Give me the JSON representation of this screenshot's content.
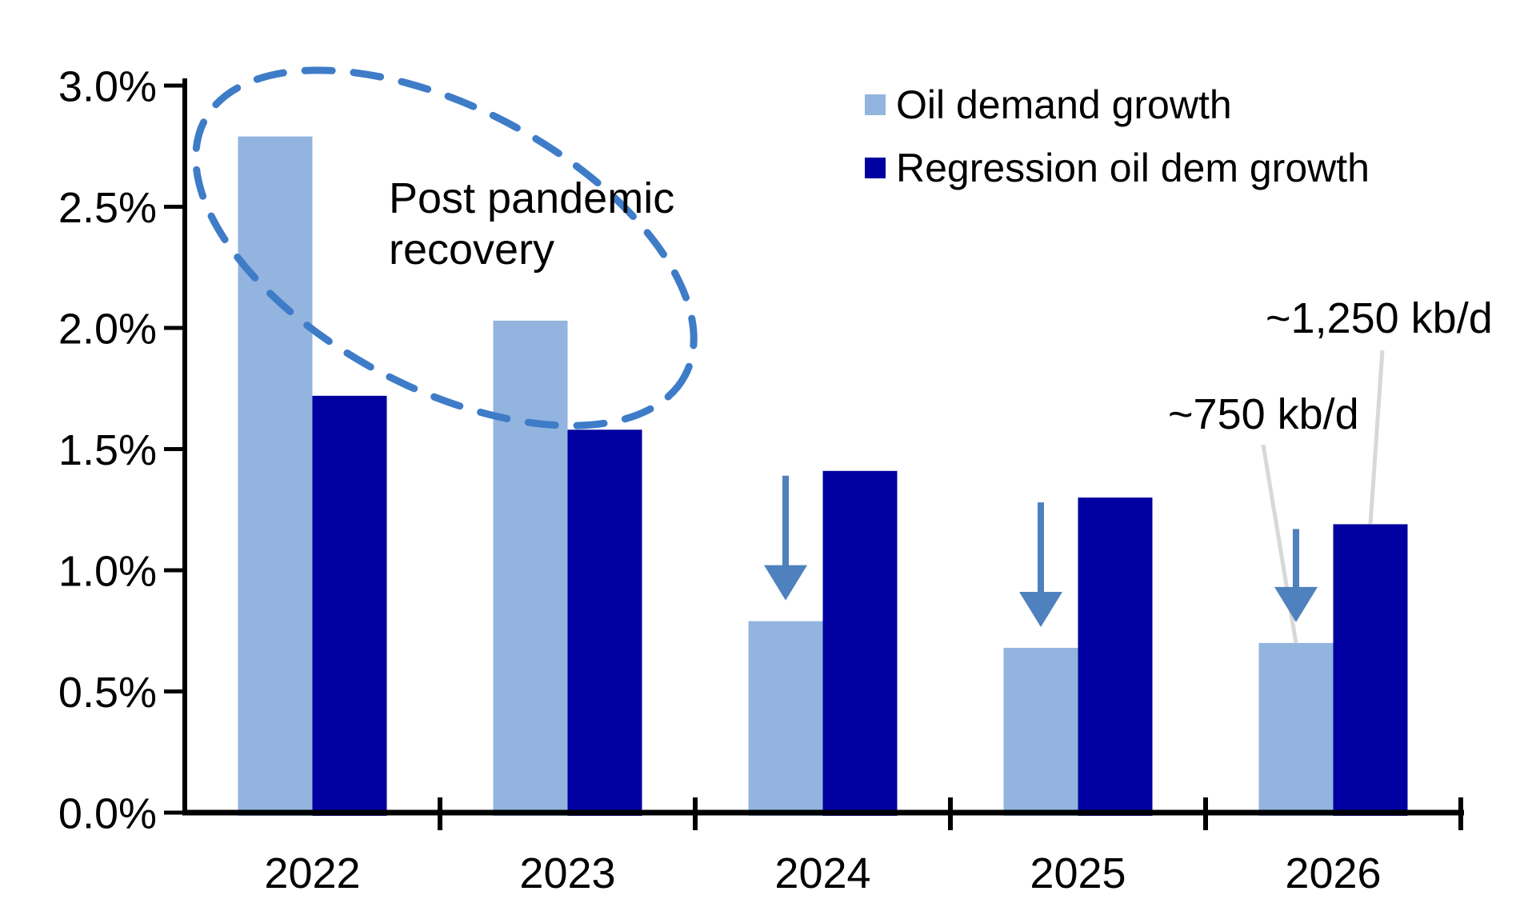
{
  "colors": {
    "background": "#FFFFFF",
    "text": "#000000",
    "axis": "#000000",
    "light_series": "#92B4DF",
    "dark_series": "#0000A0",
    "arrow": "#4E81BD",
    "ellipse": "#3E7CC8",
    "callout_line": "#D8D8D8"
  },
  "chart_data": {
    "type": "bar",
    "categories": [
      "2022",
      "2023",
      "2024",
      "2025",
      "2026"
    ],
    "series": [
      {
        "name": "Oil demand growth",
        "color": "#92B4DF",
        "values": [
          2.79,
          2.03,
          0.79,
          0.68,
          0.7
        ]
      },
      {
        "name": "Regression oil dem growth",
        "color": "#0000A0",
        "values": [
          1.72,
          1.58,
          1.41,
          1.3,
          1.19
        ]
      }
    ],
    "ylabel": "",
    "ylim": [
      0,
      3.0
    ],
    "yticks": {
      "values": [
        3.0,
        2.5,
        2.0,
        1.5,
        1.0,
        0.5,
        0.0
      ],
      "labels": [
        "3.0%",
        "2.5%",
        "2.0%",
        "1.5%",
        "1.0%",
        "0.5%",
        "0.0%"
      ]
    },
    "grid": false,
    "legend_position": "top-right",
    "annotations": {
      "circled_note": "Post pandemic\nrecovery",
      "arrow_categories": [
        "2024",
        "2025",
        "2026"
      ],
      "callouts": [
        {
          "text": "~750 kb/d",
          "category": "2026",
          "series": "Oil demand growth"
        },
        {
          "text": "~1,250 kb/d",
          "category": "2026",
          "series": "Regression oil dem growth"
        }
      ]
    }
  }
}
